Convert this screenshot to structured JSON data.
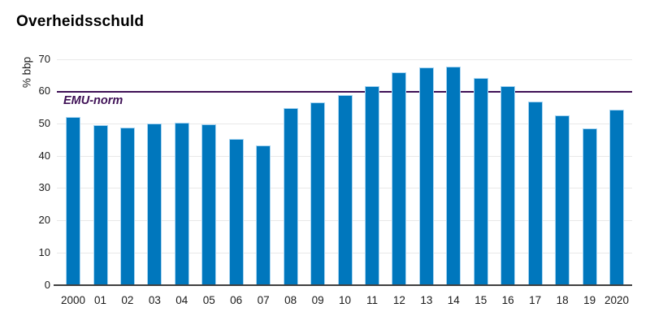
{
  "page": {
    "title": "Overheidsschuld"
  },
  "chart_data": {
    "type": "bar",
    "title": "Overheidsschuld",
    "ylabel": "% bbp",
    "xlabel": "",
    "categories": [
      "2000",
      "01",
      "02",
      "03",
      "04",
      "05",
      "06",
      "07",
      "08",
      "09",
      "10",
      "11",
      "12",
      "13",
      "14",
      "15",
      "16",
      "17",
      "18",
      "19",
      "2020"
    ],
    "values": [
      52.1,
      49.5,
      48.8,
      50.1,
      50.4,
      49.9,
      45.3,
      43.2,
      54.8,
      56.7,
      59.0,
      61.6,
      65.9,
      67.5,
      67.7,
      64.3,
      61.7,
      56.9,
      52.6,
      48.7,
      54.4
    ],
    "ylim": [
      0,
      70
    ],
    "yticks": [
      0,
      10,
      20,
      30,
      40,
      50,
      60,
      70
    ],
    "grid": true,
    "legend_position": "none",
    "reference_line": {
      "label": "EMU-norm",
      "value": 60
    },
    "colors": {
      "bar": "#0077BD",
      "bar_edge": "#A8D5F2",
      "reference_line": "#3F1156",
      "grid_line": "#E9E9E9",
      "axis_line": "#404040",
      "text": "#1A1A1A",
      "title": "#000000"
    }
  }
}
